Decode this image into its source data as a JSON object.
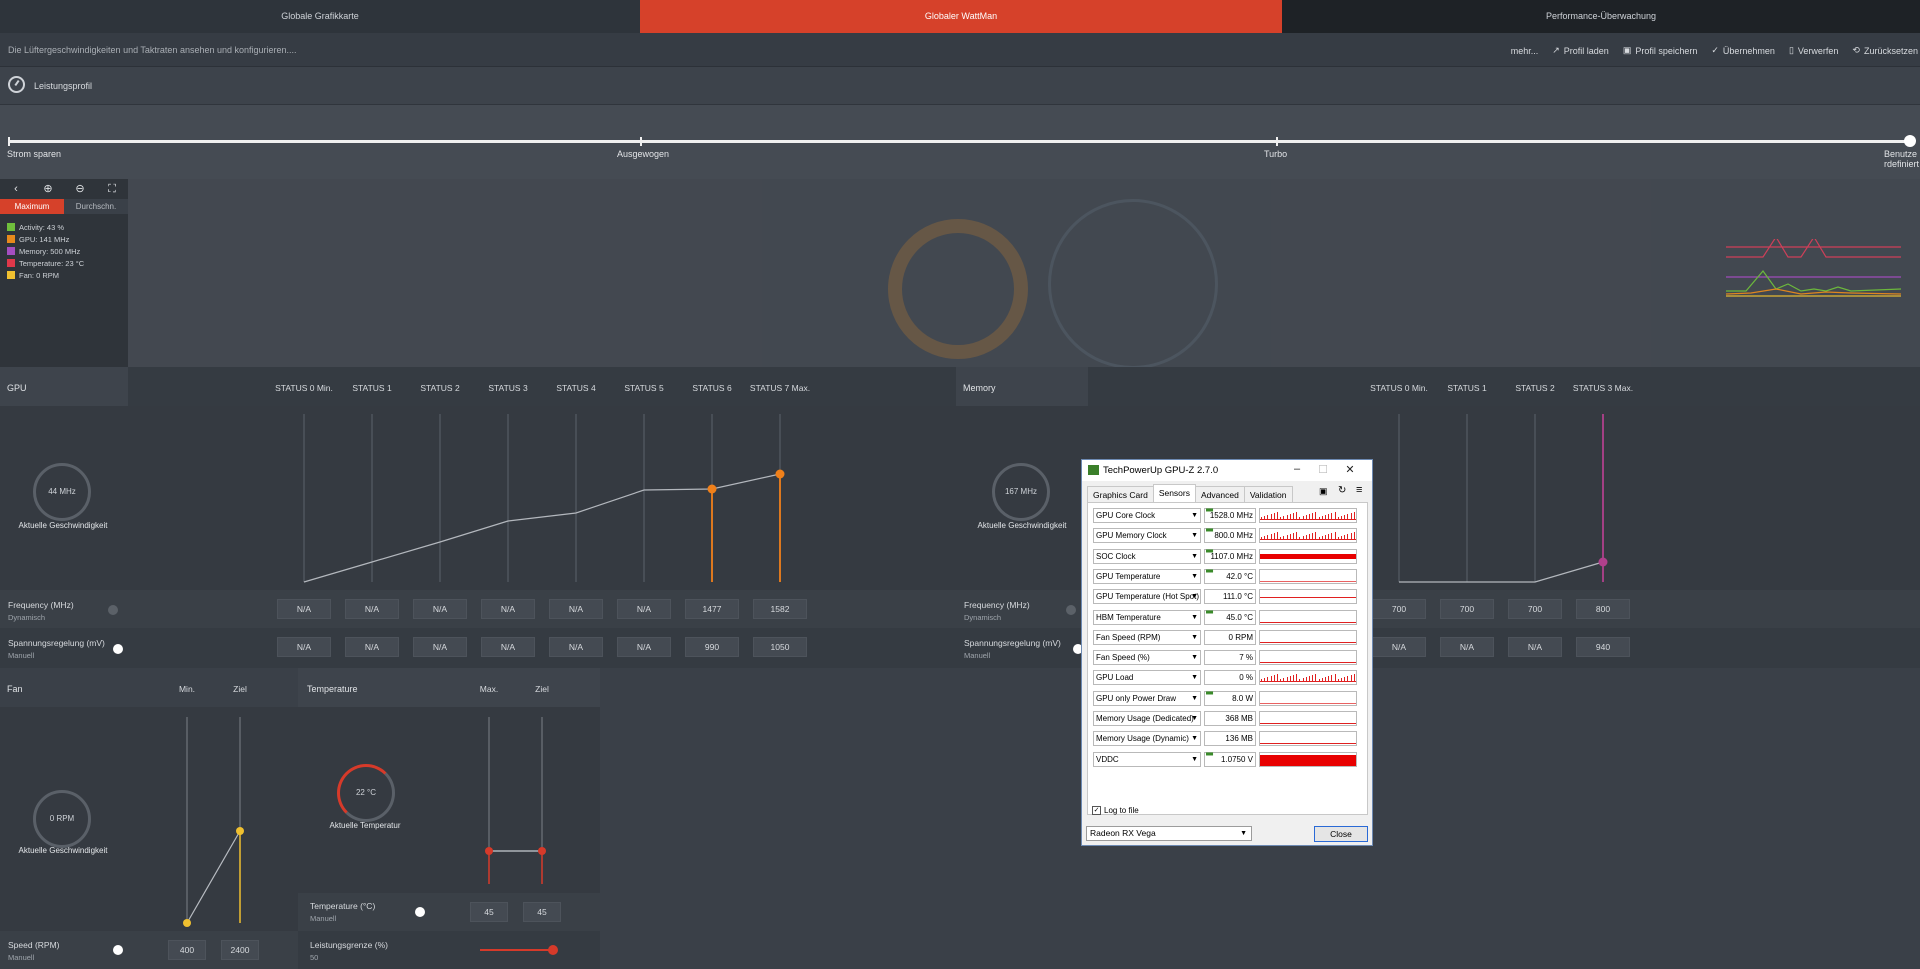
{
  "tabs": [
    {
      "label": "Globale Grafikkarte"
    },
    {
      "label": "Globaler WattMan"
    },
    {
      "label": "Performance-Überwachung"
    }
  ],
  "toolbar": {
    "description": "Die Lüftergeschwindigkeiten und Taktraten ansehen und konfigurieren....",
    "more": "mehr...",
    "load_profile": "Profil laden",
    "save_profile": "Profil speichern",
    "apply": "Übernehmen",
    "discard": "Verwerfen",
    "reset": "Zurücksetzen"
  },
  "profile": {
    "title": "Leistungsprofil",
    "stops": [
      "Strom sparen",
      "Ausgewogen",
      "Turbo",
      "Benutzerdefiniert"
    ],
    "selected": "Benutzerdefiniert"
  },
  "monitor": {
    "tools": [
      "back-icon",
      "zoom-in-icon",
      "zoom-out-icon",
      "reset-zoom-icon"
    ],
    "toggle": [
      "Maximum",
      "Durchschn."
    ],
    "legend": [
      {
        "label": "Activity: 43 %",
        "color": "#6fbf3c"
      },
      {
        "label": "GPU: 141 MHz",
        "color": "#e88a1c"
      },
      {
        "label": "Memory: 500 MHz",
        "color": "#a54ec0"
      },
      {
        "label": "Temperature: 23 °C",
        "color": "#e0384a"
      },
      {
        "label": "Fan: 0 RPM",
        "color": "#f0c030"
      }
    ]
  },
  "gpu": {
    "title": "GPU",
    "states": [
      "STATUS 0 Min.",
      "STATUS 1",
      "STATUS 2",
      "STATUS 3",
      "STATUS 4",
      "STATUS 5",
      "STATUS 6",
      "STATUS 7 Max."
    ],
    "gauge_value": "44 MHz",
    "gauge_caption": "Aktuelle Geschwindigkeit",
    "freq_label": "Frequency (MHz)",
    "freq_mode": "Dynamisch",
    "freq_values": [
      "N/A",
      "N/A",
      "N/A",
      "N/A",
      "N/A",
      "N/A",
      "1477",
      "1582"
    ],
    "volt_label": "Spannungsregelung (mV)",
    "volt_mode": "Manuell",
    "volt_values": [
      "N/A",
      "N/A",
      "N/A",
      "N/A",
      "N/A",
      "N/A",
      "990",
      "1050"
    ]
  },
  "memory": {
    "title": "Memory",
    "states": [
      "STATUS 0 Min.",
      "STATUS 1",
      "STATUS 2",
      "STATUS 3 Max."
    ],
    "gauge_value": "167 MHz",
    "gauge_caption": "Aktuelle Geschwindigkeit",
    "freq_label": "Frequency (MHz)",
    "freq_mode": "Dynamisch",
    "freq_values": [
      "700",
      "700",
      "700",
      "800"
    ],
    "volt_label": "Spannungsregelung (mV)",
    "volt_mode": "Manuell",
    "volt_values": [
      "N/A",
      "N/A",
      "N/A",
      "940"
    ]
  },
  "fan": {
    "title": "Fan",
    "col_min": "Min.",
    "col_target": "Ziel",
    "gauge_value": "0 RPM",
    "gauge_caption": "Aktuelle Geschwindigkeit",
    "speed_label": "Speed (RPM)",
    "speed_mode": "Manuell",
    "min_value": "400",
    "target_value": "2400"
  },
  "temperature": {
    "title": "Temperature",
    "col_max": "Max.",
    "col_target": "Ziel",
    "gauge_value": "22 °C",
    "gauge_caption": "Aktuelle Temperatur",
    "temp_label": "Temperature (°C)",
    "temp_mode": "Manuell",
    "max_value": "45",
    "target_value": "45",
    "power_label": "Leistungsgrenze (%)",
    "power_value": "50"
  },
  "gpuz": {
    "title": "TechPowerUp GPU-Z 2.7.0",
    "tabs": [
      "Graphics Card",
      "Sensors",
      "Advanced",
      "Validation"
    ],
    "active_tab": "Sensors",
    "sensors": [
      {
        "name": "GPU Core Clock",
        "value": "1528.0 MHz",
        "marked": true
      },
      {
        "name": "GPU Memory Clock",
        "value": "800.0 MHz",
        "marked": true
      },
      {
        "name": "SOC Clock",
        "value": "1107.0 MHz",
        "marked": true
      },
      {
        "name": "GPU Temperature",
        "value": "42.0 °C",
        "marked": true
      },
      {
        "name": "GPU Temperature (Hot Spot)",
        "value": "111.0 °C",
        "marked": false
      },
      {
        "name": "HBM Temperature",
        "value": "45.0 °C",
        "marked": true
      },
      {
        "name": "Fan Speed (RPM)",
        "value": "0 RPM",
        "marked": false
      },
      {
        "name": "Fan Speed (%)",
        "value": "7 %",
        "marked": false
      },
      {
        "name": "GPU Load",
        "value": "0 %",
        "marked": false
      },
      {
        "name": "GPU only Power Draw",
        "value": "8.0 W",
        "marked": true
      },
      {
        "name": "Memory Usage (Dedicated)",
        "value": "368 MB",
        "marked": false
      },
      {
        "name": "Memory Usage (Dynamic)",
        "value": "136 MB",
        "marked": false
      },
      {
        "name": "VDDC",
        "value": "1.0750 V",
        "marked": true
      }
    ],
    "log_label": "Log to file",
    "device": "Radeon RX Vega",
    "close_label": "Close"
  }
}
